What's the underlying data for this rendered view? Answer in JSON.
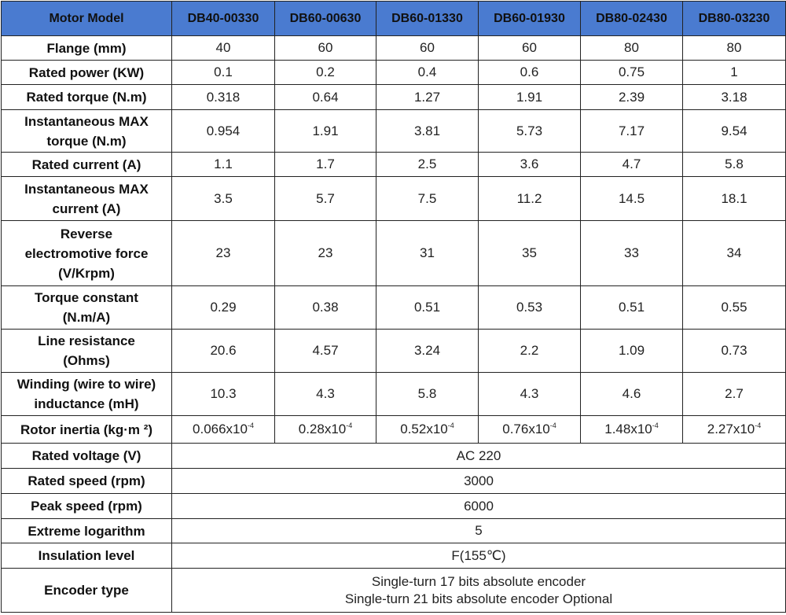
{
  "table": {
    "header": [
      "Motor Model",
      "DB40-00330",
      "DB60-00630",
      "DB60-01330",
      "DB60-01930",
      "DB80-02430",
      "DB80-03230"
    ],
    "rows": [
      {
        "label": "Flange (mm)",
        "values": [
          "40",
          "60",
          "60",
          "60",
          "80",
          "80"
        ]
      },
      {
        "label": "Rated power (KW)",
        "values": [
          "0.1",
          "0.2",
          "0.4",
          "0.6",
          "0.75",
          "1"
        ]
      },
      {
        "label": "Rated torque (N.m)",
        "values": [
          "0.318",
          "0.64",
          "1.27",
          "1.91",
          "2.39",
          "3.18"
        ]
      },
      {
        "label": "Instantaneous MAX\ntorque (N.m)",
        "values": [
          "0.954",
          "1.91",
          "3.81",
          "5.73",
          "7.17",
          "9.54"
        ]
      },
      {
        "label": "Rated current (A)",
        "values": [
          "1.1",
          "1.7",
          "2.5",
          "3.6",
          "4.7",
          "5.8"
        ]
      },
      {
        "label": "Instantaneous MAX\ncurrent (A)",
        "values": [
          "3.5",
          "5.7",
          "7.5",
          "11.2",
          "14.5",
          "18.1"
        ]
      },
      {
        "label": "Reverse\nelectromotive force\n(V/Krpm)",
        "values": [
          "23",
          "23",
          "31",
          "35",
          "33",
          "34"
        ]
      },
      {
        "label": "Torque constant\n(N.m/A)",
        "values": [
          "0.29",
          "0.38",
          "0.51",
          "0.53",
          "0.51",
          "0.55"
        ]
      },
      {
        "label": "Line resistance\n(Ohms)",
        "values": [
          "20.6",
          "4.57",
          "3.24",
          "2.2",
          "1.09",
          "0.73"
        ]
      },
      {
        "label": "Winding (wire to wire)\ninductance (mH)",
        "values": [
          "10.3",
          "4.3",
          "5.8",
          "4.3",
          "4.6",
          "2.7"
        ]
      },
      {
        "label": "Rotor inertia (kg·m ²)",
        "values": [
          {
            "base": "0.066x10",
            "exp": "-4"
          },
          {
            "base": "0.28x10",
            "exp": "-4"
          },
          {
            "base": "0.52x10",
            "exp": "-4"
          },
          {
            "base": "0.76x10",
            "exp": "-4"
          },
          {
            "base": "1.48x10",
            "exp": "-4"
          },
          {
            "base": "2.27x10",
            "exp": "-4"
          }
        ]
      },
      {
        "label": "Rated voltage (V)",
        "value": "AC 220"
      },
      {
        "label": "Rated speed (rpm)",
        "value": "3000"
      },
      {
        "label": "Peak speed (rpm)",
        "value": "6000"
      },
      {
        "label": "Extreme logarithm",
        "value": "5"
      },
      {
        "label": "Insulation level",
        "value": "F(155℃)"
      },
      {
        "label": "Encoder type",
        "value": "Single-turn 17 bits absolute encoder\nSingle-turn 21 bits absolute encoder Optional"
      }
    ]
  }
}
